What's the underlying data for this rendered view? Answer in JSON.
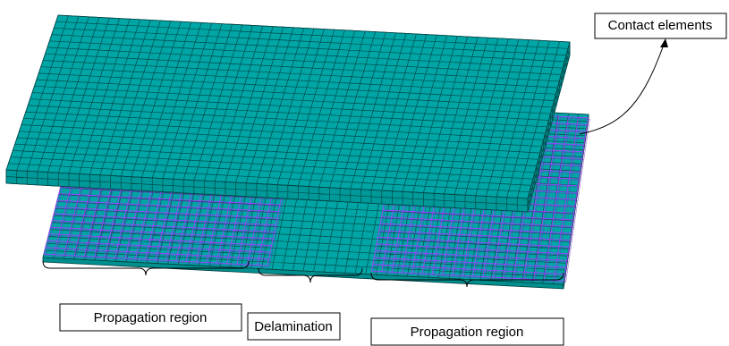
{
  "callout": "Contact elements",
  "regions": [
    "Propagation region",
    "Delamination",
    "Propagation region"
  ]
}
